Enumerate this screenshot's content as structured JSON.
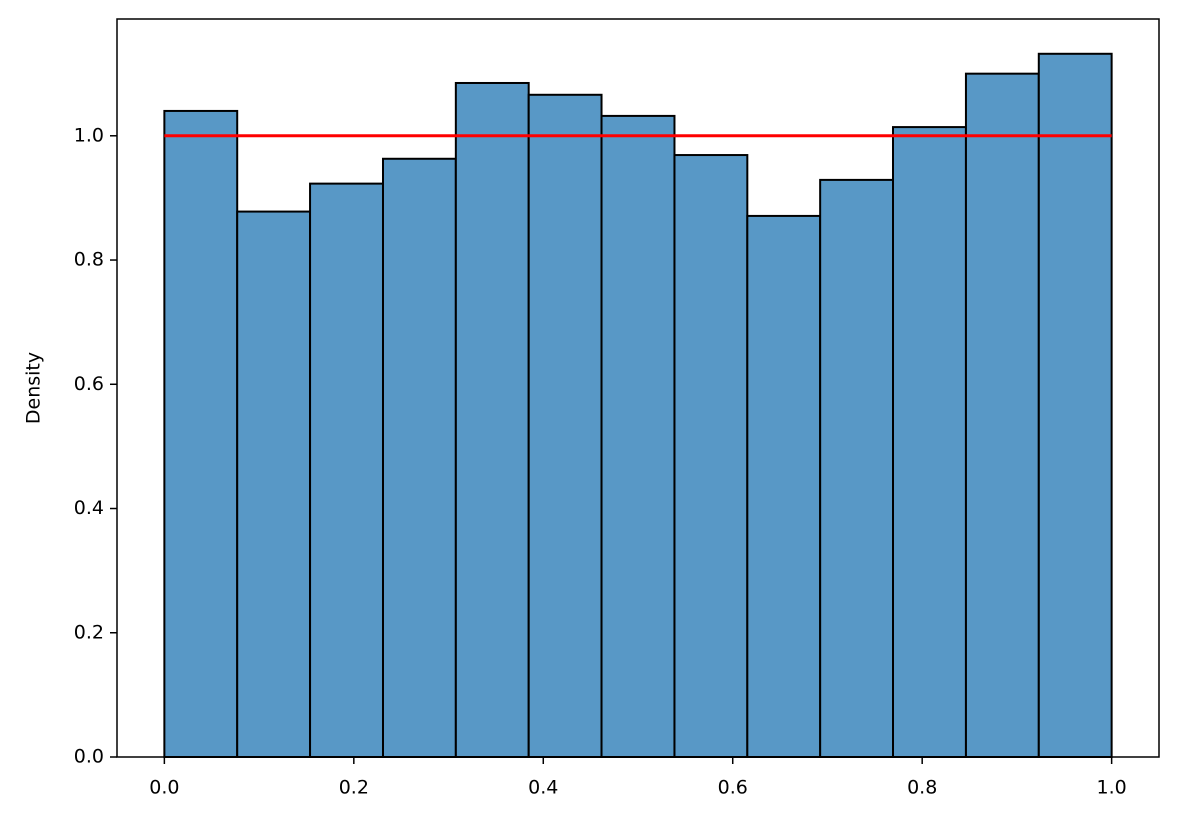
{
  "chart_data": {
    "type": "histogram",
    "ylabel": "Density",
    "bins": [
      0,
      0.0769,
      0.1538,
      0.2308,
      0.3077,
      0.3846,
      0.4615,
      0.5385,
      0.6154,
      0.6923,
      0.7692,
      0.8462,
      0.9231,
      1.0
    ],
    "values": [
      1.04,
      0.878,
      0.923,
      0.963,
      1.085,
      1.066,
      1.032,
      0.969,
      0.871,
      0.929,
      1.014,
      1.1,
      1.132
    ],
    "color": "#5898c6",
    "edgecolor": "#000000",
    "reference_line": {
      "x": [
        0,
        1
      ],
      "values": [
        1,
        1
      ],
      "color": "#ff0000"
    },
    "xlim": [
      -0.05,
      1.05
    ],
    "ylim": [
      0,
      1.188
    ],
    "xticks": [
      {
        "value": 0,
        "label": "0.0"
      },
      0.2,
      0.4,
      0.6,
      0.8,
      {
        "value": 1,
        "label": "1.0"
      }
    ],
    "yticks": [
      {
        "value": 0,
        "label": "0.0"
      },
      0.2,
      0.4,
      0.6,
      0.8,
      {
        "value": 1,
        "label": "1.0"
      }
    ],
    "grid": false
  }
}
